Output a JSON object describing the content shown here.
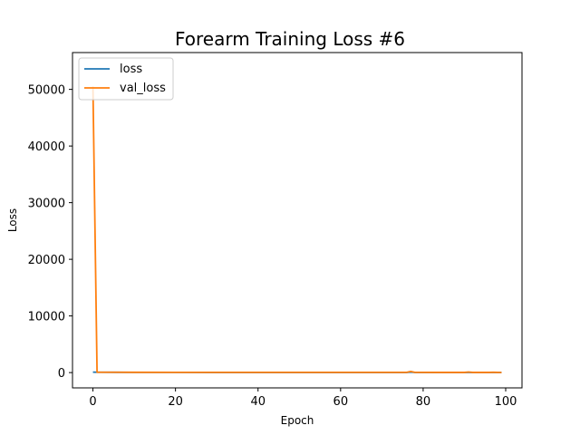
{
  "chart_data": {
    "type": "line",
    "title": "Forearm Training Loss #6",
    "xlabel": "Epoch",
    "ylabel": "Loss",
    "xlim": [
      -4.95,
      103.95
    ],
    "ylim": [
      -2700,
      56500
    ],
    "xticks": [
      0,
      20,
      40,
      60,
      80,
      100
    ],
    "yticks": [
      0,
      10000,
      20000,
      30000,
      40000,
      50000
    ],
    "grid": false,
    "legend_placement": "upper-left",
    "series": [
      {
        "name": "loss",
        "color": "#1f77b4",
        "x": [
          0,
          1,
          10,
          20,
          30,
          40,
          50,
          60,
          70,
          76,
          77,
          78,
          85,
          90,
          91,
          92,
          96,
          97,
          98,
          99
        ],
        "y": [
          80,
          60,
          40,
          35,
          30,
          30,
          28,
          25,
          25,
          25,
          80,
          25,
          22,
          20,
          45,
          20,
          20,
          35,
          20,
          20
        ]
      },
      {
        "name": "val_loss",
        "color": "#ff7f0e",
        "x": [
          0,
          1,
          10,
          20,
          30,
          40,
          50,
          60,
          70,
          76,
          77,
          78,
          85,
          90,
          91,
          92,
          96,
          97,
          98,
          99
        ],
        "y": [
          50500,
          60,
          50,
          45,
          40,
          40,
          38,
          35,
          35,
          35,
          200,
          35,
          30,
          30,
          100,
          30,
          28,
          60,
          28,
          25
        ]
      }
    ]
  }
}
